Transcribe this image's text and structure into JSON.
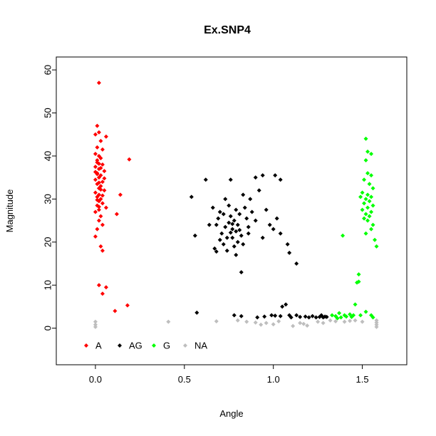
{
  "chart_data": {
    "type": "scatter",
    "title": "Ex.SNP4",
    "xlabel": "Angle",
    "ylabel": "Magnitude",
    "xlim": [
      -0.22,
      1.75
    ],
    "ylim": [
      -8.5,
      63
    ],
    "xticks": [
      0.0,
      0.5,
      1.0,
      1.5
    ],
    "xtick_labels": [
      "0.0",
      "0.5",
      "1.0",
      "1.5"
    ],
    "yticks": [
      0,
      10,
      20,
      30,
      40,
      50,
      60
    ],
    "ytick_labels": [
      "0",
      "10",
      "20",
      "30",
      "40",
      "50",
      "60"
    ],
    "grid": false,
    "legend_position": "bottom-left",
    "series": [
      {
        "name": "A",
        "color": "#ff0000",
        "points": [
          [
            0.02,
            57
          ],
          [
            0.01,
            47
          ],
          [
            0.02,
            45.5
          ],
          [
            0.0,
            45
          ],
          [
            0.06,
            44.5
          ],
          [
            0.03,
            43.5
          ],
          [
            0.01,
            42
          ],
          [
            0.04,
            41.5
          ],
          [
            0.0,
            40.5
          ],
          [
            0.02,
            40
          ],
          [
            0.03,
            39.5
          ],
          [
            0.19,
            39.2
          ],
          [
            0.01,
            38.5
          ],
          [
            0.04,
            38
          ],
          [
            0.0,
            37.5
          ],
          [
            0.02,
            37
          ],
          [
            0.05,
            36.5
          ],
          [
            0.01,
            36
          ],
          [
            0.03,
            35.5
          ],
          [
            0.02,
            35
          ],
          [
            0.0,
            34.5
          ],
          [
            0.04,
            34
          ],
          [
            0.01,
            33.5
          ],
          [
            0.03,
            33
          ],
          [
            0.02,
            32.5
          ],
          [
            0.05,
            32
          ],
          [
            0.0,
            31.5
          ],
          [
            0.14,
            31
          ],
          [
            0.01,
            30.5
          ],
          [
            0.03,
            30
          ],
          [
            0.02,
            29.5
          ],
          [
            0.04,
            29
          ],
          [
            0.01,
            28.5
          ],
          [
            0.06,
            28
          ],
          [
            0.02,
            27.5
          ],
          [
            0.0,
            27
          ],
          [
            0.12,
            26.5
          ],
          [
            0.03,
            26
          ],
          [
            0.02,
            25
          ],
          [
            0.04,
            24
          ],
          [
            0.01,
            23
          ],
          [
            0.0,
            21.3
          ],
          [
            0.03,
            19
          ],
          [
            0.04,
            18
          ],
          [
            0.02,
            10
          ],
          [
            0.06,
            9.5
          ],
          [
            0.04,
            8
          ],
          [
            0.11,
            4
          ],
          [
            0.18,
            5.3
          ],
          [
            0.01,
            39
          ],
          [
            0.02,
            38.2
          ],
          [
            0.03,
            37.2
          ],
          [
            0.01,
            35.8
          ],
          [
            0.02,
            33.8
          ],
          [
            0.03,
            32.2
          ],
          [
            0.02,
            31
          ],
          [
            0.01,
            29.8
          ],
          [
            0.04,
            30.8
          ],
          [
            0.05,
            34.8
          ],
          [
            0.0,
            36.3
          ],
          [
            0.02,
            28.2
          ]
        ]
      },
      {
        "name": "AG",
        "color": "#000000",
        "points": [
          [
            0.54,
            30.5
          ],
          [
            0.62,
            34.5
          ],
          [
            0.56,
            21.5
          ],
          [
            0.64,
            24
          ],
          [
            0.66,
            28
          ],
          [
            0.67,
            18.5
          ],
          [
            0.68,
            17.8
          ],
          [
            0.69,
            25.5
          ],
          [
            0.7,
            27
          ],
          [
            0.71,
            22
          ],
          [
            0.72,
            19.5
          ],
          [
            0.73,
            30
          ],
          [
            0.74,
            21
          ],
          [
            0.75,
            24.5
          ],
          [
            0.76,
            26
          ],
          [
            0.76,
            34.5
          ],
          [
            0.77,
            23
          ],
          [
            0.78,
            25
          ],
          [
            0.79,
            22.5
          ],
          [
            0.79,
            17
          ],
          [
            0.8,
            24
          ],
          [
            0.81,
            26.5
          ],
          [
            0.82,
            21.5
          ],
          [
            0.83,
            19.5
          ],
          [
            0.84,
            28
          ],
          [
            0.85,
            25.5
          ],
          [
            0.86,
            22
          ],
          [
            0.87,
            30
          ],
          [
            0.88,
            27
          ],
          [
            0.9,
            25
          ],
          [
            0.92,
            32
          ],
          [
            0.94,
            21
          ],
          [
            0.96,
            27.5
          ],
          [
            0.98,
            24
          ],
          [
            1.0,
            23
          ],
          [
            1.02,
            25.5
          ],
          [
            1.04,
            22
          ],
          [
            1.01,
            35.5
          ],
          [
            0.94,
            35.5
          ],
          [
            0.9,
            35
          ],
          [
            1.04,
            34.5
          ],
          [
            1.08,
            19.5
          ],
          [
            1.09,
            17.5
          ],
          [
            1.13,
            15
          ],
          [
            0.82,
            13
          ],
          [
            0.78,
            19
          ],
          [
            0.73,
            23.5
          ],
          [
            0.7,
            20.5
          ],
          [
            0.75,
            28.5
          ],
          [
            0.77,
            21
          ],
          [
            0.8,
            20
          ],
          [
            0.72,
            26.5
          ],
          [
            0.68,
            24
          ],
          [
            0.83,
            31
          ],
          [
            0.86,
            23.5
          ],
          [
            0.74,
            18
          ],
          [
            0.79,
            27.5
          ],
          [
            0.81,
            22.8
          ],
          [
            0.77,
            24.2
          ],
          [
            0.76,
            22.2
          ],
          [
            0.57,
            3.6
          ],
          [
            0.78,
            3
          ],
          [
            0.82,
            2.8
          ],
          [
            0.91,
            2.5
          ],
          [
            0.95,
            2.7
          ],
          [
            0.99,
            3
          ],
          [
            1.01,
            2.9
          ],
          [
            1.05,
            5
          ],
          [
            1.07,
            5.5
          ],
          [
            1.09,
            3
          ],
          [
            1.1,
            2.5
          ],
          [
            1.13,
            3
          ],
          [
            1.15,
            2.6
          ],
          [
            1.18,
            2.7
          ],
          [
            1.2,
            2.5
          ],
          [
            1.22,
            2.8
          ],
          [
            1.24,
            2.5
          ],
          [
            1.26,
            2.6
          ],
          [
            1.27,
            3
          ],
          [
            1.28,
            2.5
          ],
          [
            1.29,
            2.7
          ],
          [
            1.3,
            2.6
          ],
          [
            1.04,
            2.8
          ]
        ]
      },
      {
        "name": "G",
        "color": "#00ff00",
        "points": [
          [
            1.52,
            44
          ],
          [
            1.53,
            41
          ],
          [
            1.55,
            40.5
          ],
          [
            1.52,
            39
          ],
          [
            1.53,
            36
          ],
          [
            1.55,
            35.5
          ],
          [
            1.51,
            34.5
          ],
          [
            1.54,
            33.5
          ],
          [
            1.56,
            32.5
          ],
          [
            1.5,
            31.5
          ],
          [
            1.53,
            31
          ],
          [
            1.55,
            30.5
          ],
          [
            1.49,
            30.5
          ],
          [
            1.52,
            30
          ],
          [
            1.54,
            29.5
          ],
          [
            1.51,
            29
          ],
          [
            1.56,
            28.5
          ],
          [
            1.53,
            28
          ],
          [
            1.5,
            27.5
          ],
          [
            1.55,
            27
          ],
          [
            1.52,
            26.5
          ],
          [
            1.54,
            26
          ],
          [
            1.51,
            25.5
          ],
          [
            1.53,
            25
          ],
          [
            1.56,
            24
          ],
          [
            1.55,
            23
          ],
          [
            1.52,
            22
          ],
          [
            1.57,
            20.5
          ],
          [
            1.58,
            19
          ],
          [
            1.39,
            21.5
          ],
          [
            1.48,
            12.5
          ],
          [
            1.48,
            10.8
          ],
          [
            1.47,
            10.6
          ],
          [
            1.46,
            5.5
          ],
          [
            1.33,
            3
          ],
          [
            1.35,
            2.8
          ],
          [
            1.37,
            3.5
          ],
          [
            1.38,
            2.5
          ],
          [
            1.4,
            3
          ],
          [
            1.41,
            2.7
          ],
          [
            1.43,
            3.2
          ],
          [
            1.44,
            2.6
          ],
          [
            1.45,
            3
          ],
          [
            1.49,
            3
          ],
          [
            1.52,
            3.8
          ],
          [
            1.55,
            3
          ],
          [
            1.56,
            2.5
          ],
          [
            1.36,
            2.3
          ]
        ]
      },
      {
        "name": "NA",
        "color": "#bebebe",
        "points": [
          [
            0.0,
            1.5
          ],
          [
            0.0,
            0.8
          ],
          [
            0.0,
            0.3
          ],
          [
            0.41,
            1.5
          ],
          [
            0.68,
            1.6
          ],
          [
            0.8,
            1.8
          ],
          [
            0.85,
            1.5
          ],
          [
            0.9,
            1.3
          ],
          [
            0.93,
            0.8
          ],
          [
            0.96,
            1.2
          ],
          [
            1.0,
            0.9
          ],
          [
            1.03,
            1.6
          ],
          [
            1.11,
            0.5
          ],
          [
            1.15,
            1.2
          ],
          [
            1.17,
            1.0
          ],
          [
            1.19,
            0.6
          ],
          [
            1.25,
            1.5
          ],
          [
            1.28,
            1.2
          ],
          [
            1.32,
            1.8
          ],
          [
            1.35,
            1.6
          ],
          [
            1.4,
            1.5
          ],
          [
            1.43,
            1.7
          ],
          [
            1.46,
            1.8
          ],
          [
            1.5,
            1.5
          ],
          [
            1.58,
            1.8
          ],
          [
            1.58,
            1.3
          ],
          [
            1.58,
            0.8
          ],
          [
            1.58,
            0.3
          ]
        ]
      }
    ]
  }
}
